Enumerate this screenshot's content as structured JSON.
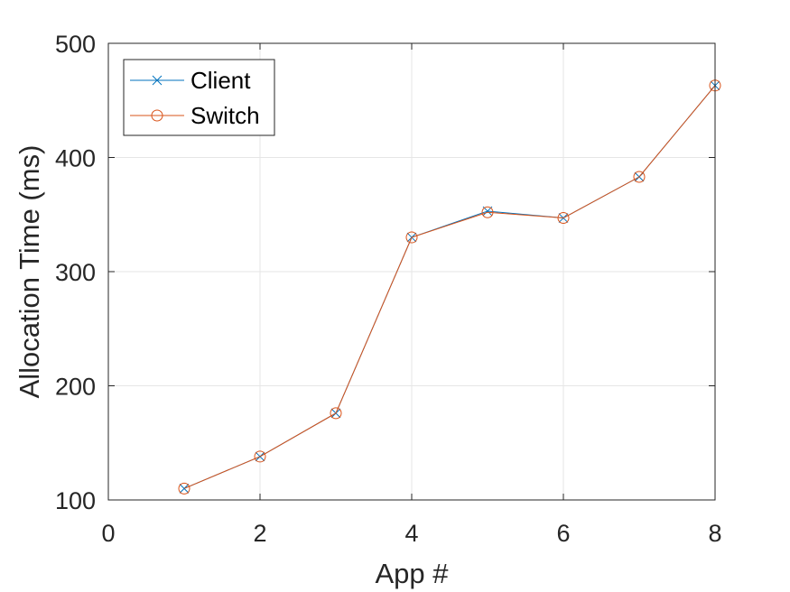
{
  "chart_data": {
    "type": "line",
    "xlabel": "App #",
    "ylabel": "Allocation Time (ms)",
    "xlim": [
      0,
      8
    ],
    "ylim": [
      100,
      500
    ],
    "xticks": [
      0,
      2,
      4,
      6,
      8
    ],
    "yticks": [
      100,
      200,
      300,
      400,
      500
    ],
    "xtick_labels": [
      "0",
      "2",
      "4",
      "6",
      "8"
    ],
    "ytick_labels": [
      "100",
      "200",
      "300",
      "400",
      "500"
    ],
    "grid": true,
    "legend_position": "top-left",
    "x": [
      1,
      2,
      3,
      4,
      5,
      6,
      7,
      8
    ],
    "series": [
      {
        "name": "Client",
        "values": [
          110,
          138,
          176,
          330,
          353,
          347,
          383,
          463
        ],
        "color": "#0072BD",
        "marker": "x"
      },
      {
        "name": "Switch",
        "values": [
          110,
          138,
          176,
          330,
          352,
          347,
          383,
          463
        ],
        "color": "#D95319",
        "marker": "circle"
      }
    ]
  }
}
